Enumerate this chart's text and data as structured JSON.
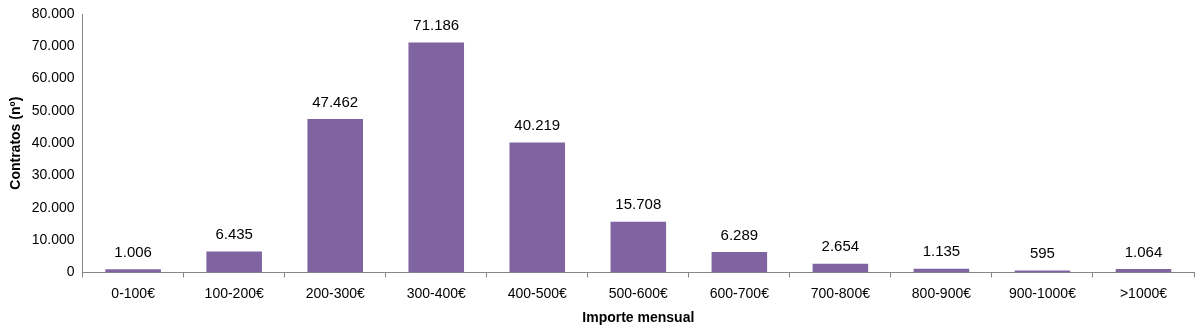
{
  "chart_data": {
    "type": "bar",
    "xlabel": "Importe mensual",
    "ylabel": "Contratos (nº)",
    "categories": [
      "0-100€",
      "100-200€",
      "200-300€",
      "300-400€",
      "400-500€",
      "500-600€",
      "600-700€",
      "700-800€",
      "800-900€",
      "900-1000€",
      ">1000€"
    ],
    "values": [
      1006,
      6435,
      47462,
      71186,
      40219,
      15708,
      6289,
      2654,
      1135,
      595,
      1064
    ],
    "value_labels": [
      "1.006",
      "6.435",
      "47.462",
      "71.186",
      "40.219",
      "15.708",
      "6.289",
      "2.654",
      "1.135",
      "595",
      "1.064"
    ],
    "color": "#8064a2",
    "ylim": [
      0,
      80000
    ],
    "yticks": [
      {
        "value": 0,
        "label": "0"
      },
      {
        "value": 10000,
        "label": "10.000"
      },
      {
        "value": 20000,
        "label": "20.000"
      },
      {
        "value": 30000,
        "label": "30.000"
      },
      {
        "value": 40000,
        "label": "40.000"
      },
      {
        "value": 50000,
        "label": "50.000"
      },
      {
        "value": 60000,
        "label": "60.000"
      },
      {
        "value": 70000,
        "label": "70.000"
      },
      {
        "value": 80000,
        "label": "80.000"
      }
    ],
    "grid": false,
    "legend": false
  }
}
